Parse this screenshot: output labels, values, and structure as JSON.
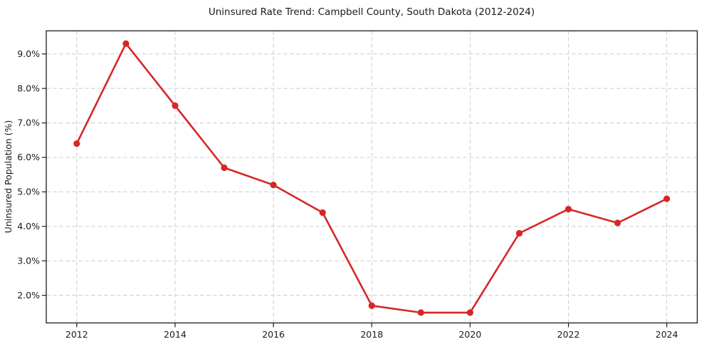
{
  "chart_data": {
    "type": "line",
    "title": "Uninsured Rate Trend: Campbell County, South Dakota (2012-2024)",
    "xlabel": "",
    "ylabel": "Uninsured Population (%)",
    "x": [
      2012,
      2013,
      2014,
      2015,
      2016,
      2017,
      2018,
      2019,
      2020,
      2021,
      2022,
      2023,
      2024
    ],
    "y": [
      6.4,
      9.3,
      7.5,
      5.7,
      5.2,
      4.4,
      1.7,
      1.5,
      1.5,
      3.8,
      4.5,
      4.1,
      4.8
    ],
    "xticks": [
      2012,
      2014,
      2016,
      2018,
      2020,
      2022,
      2024
    ],
    "yticks": [
      2.0,
      3.0,
      4.0,
      5.0,
      6.0,
      7.0,
      8.0,
      9.0
    ],
    "ytick_suffix": "%",
    "xlim": [
      2011.38,
      2024.62
    ],
    "ylim": [
      1.2,
      9.67
    ],
    "grid": true,
    "grid_style": "dashed",
    "legend": false,
    "marker": "circle",
    "colors": {
      "line": "#d62728",
      "marker": "#d62728",
      "grid": "#cccccc",
      "frame": "#1a1a1a",
      "text": "#1a1a1a",
      "background": "#ffffff"
    }
  }
}
